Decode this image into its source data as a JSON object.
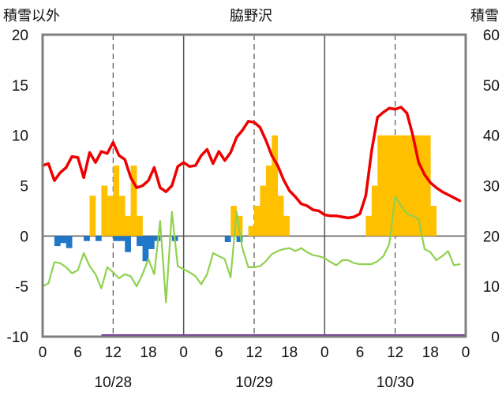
{
  "chart_data": {
    "type": "bar+line",
    "title": "脇野沢",
    "ylabel_left": "積雪以外",
    "ylabel_right": "積雪",
    "ylim_left": [
      -10,
      20
    ],
    "yticks_left": [
      "20",
      "15",
      "10",
      "5",
      "0",
      "-5",
      "-10"
    ],
    "ylim_right": [
      0,
      60
    ],
    "yticks_right": [
      "60",
      "50",
      "40",
      "30",
      "20",
      "10",
      "0"
    ],
    "xlim_hours": [
      0,
      72
    ],
    "xtick_labels": [
      "0",
      "6",
      "12",
      "18",
      "0",
      "6",
      "12",
      "18",
      "0",
      "6",
      "12",
      "18",
      "0"
    ],
    "dates": [
      "10/28",
      "10/29",
      "10/30"
    ],
    "grid": "dashed vertical at 12h, solid vertical at day boundaries",
    "colors": {
      "temperature": "#ee0000",
      "green_series": "#8fd14f",
      "precipitation_bars": "#ffc000",
      "negative_bars": "#1f77c8",
      "baseline_series": "#7030a0"
    },
    "series": [
      {
        "name": "",
        "kind": "line",
        "axis": "left",
        "color": "#ee0000",
        "x": [
          0,
          1,
          2,
          3,
          4,
          5,
          6,
          7,
          8,
          9,
          10,
          11,
          12,
          13,
          14,
          15,
          16,
          17,
          18,
          19,
          20,
          21,
          22,
          23,
          24,
          25,
          26,
          27,
          28,
          29,
          30,
          31,
          32,
          33,
          34,
          35,
          36,
          37,
          38,
          39,
          40,
          41,
          42,
          43,
          44,
          45,
          46,
          47,
          48,
          49,
          50,
          51,
          52,
          53,
          54,
          55,
          56,
          57,
          58,
          59,
          60,
          61,
          62,
          63,
          64,
          65,
          66,
          67,
          68,
          69,
          70,
          71
        ],
        "y": [
          7.0,
          7.2,
          5.5,
          6.3,
          6.8,
          7.9,
          7.8,
          5.8,
          8.3,
          7.3,
          8.4,
          8.2,
          9.3,
          8.0,
          7.6,
          5.8,
          4.8,
          5.0,
          5.5,
          6.8,
          4.8,
          4.4,
          5.0,
          6.9,
          7.3,
          6.9,
          7.0,
          8.0,
          8.6,
          7.2,
          8.4,
          7.5,
          8.3,
          9.8,
          10.5,
          11.4,
          11.3,
          10.8,
          9.5,
          8.0,
          7.0,
          5.6,
          4.5,
          3.9,
          3.2,
          3.0,
          2.6,
          2.5,
          2.1,
          2.0,
          2.0,
          1.9,
          1.8,
          1.9,
          2.2,
          4.0,
          8.5,
          11.8,
          12.3,
          12.7,
          12.6,
          12.8,
          12.2,
          10.0,
          7.3,
          6.1,
          5.3,
          4.8,
          4.4,
          4.1,
          3.8,
          3.5
        ]
      },
      {
        "name": "",
        "kind": "line",
        "axis": "left",
        "color": "#8fd14f",
        "x": [
          0,
          1,
          2,
          3,
          4,
          5,
          6,
          7,
          8,
          9,
          10,
          11,
          12,
          13,
          14,
          15,
          16,
          17,
          18,
          19,
          20,
          21,
          22,
          23,
          24,
          25,
          26,
          27,
          28,
          29,
          30,
          31,
          32,
          33,
          34,
          35,
          36,
          37,
          38,
          39,
          40,
          41,
          42,
          43,
          44,
          45,
          46,
          47,
          48,
          49,
          50,
          51,
          52,
          53,
          54,
          55,
          56,
          57,
          58,
          59,
          60,
          61,
          62,
          63,
          64,
          65,
          66,
          67,
          68,
          69,
          70,
          71
        ],
        "y": [
          -5.0,
          -4.7,
          -2.6,
          -2.7,
          -3.1,
          -3.7,
          -3.4,
          -1.7,
          -3.0,
          -3.8,
          -5.2,
          -3.1,
          -3.6,
          -4.2,
          -3.8,
          -4.0,
          -5.0,
          -3.8,
          -2.3,
          -3.8,
          1.5,
          -6.6,
          2.4,
          -3.0,
          -3.3,
          -3.6,
          -4.0,
          -4.8,
          -3.8,
          -1.7,
          -2.0,
          -2.3,
          -4.1,
          2.4,
          -1.2,
          -3.1,
          -3.1,
          -3.0,
          -2.5,
          -1.8,
          -1.5,
          -1.3,
          -1.2,
          -1.5,
          -1.2,
          -1.6,
          -1.9,
          -2.0,
          -2.2,
          -2.6,
          -2.9,
          -2.4,
          -2.4,
          -2.7,
          -2.8,
          -2.8,
          -2.8,
          -2.5,
          -2.0,
          -0.8,
          3.9,
          3.0,
          2.2,
          2.0,
          1.7,
          -1.3,
          -1.6,
          -2.4,
          -2.0,
          -1.5,
          -2.9,
          -2.8
        ]
      },
      {
        "name": "",
        "kind": "bar",
        "axis": "left",
        "color": "#ffc000",
        "x": [
          8,
          10,
          11,
          12,
          13,
          14,
          15,
          16,
          32,
          33,
          35,
          36,
          37,
          38,
          39,
          40,
          41,
          55,
          56,
          57,
          58,
          59,
          60,
          61,
          62,
          63,
          64,
          65,
          66
        ],
        "y": [
          4,
          5,
          4,
          7,
          4,
          2,
          7,
          2,
          3,
          2,
          1,
          3,
          5,
          7,
          10,
          4,
          2,
          2,
          5,
          10,
          10,
          10,
          10,
          10,
          10,
          10,
          10,
          10,
          3
        ]
      },
      {
        "name": "",
        "kind": "bar",
        "axis": "left",
        "color": "#1f77c8",
        "x": [
          2,
          3,
          4,
          7,
          9,
          12,
          13,
          14,
          16,
          17,
          18,
          19,
          22,
          31,
          33
        ],
        "y": [
          -1,
          -0.7,
          -1.2,
          -0.5,
          -0.5,
          -0.5,
          -0.5,
          -1.6,
          -1.0,
          -2.5,
          -1.3,
          -0.5,
          -0.5,
          -0.6,
          -0.6
        ]
      },
      {
        "name": "",
        "kind": "line",
        "axis": "right",
        "color": "#7030a0",
        "x": [
          10,
          72
        ],
        "y": [
          0,
          0
        ]
      }
    ]
  }
}
